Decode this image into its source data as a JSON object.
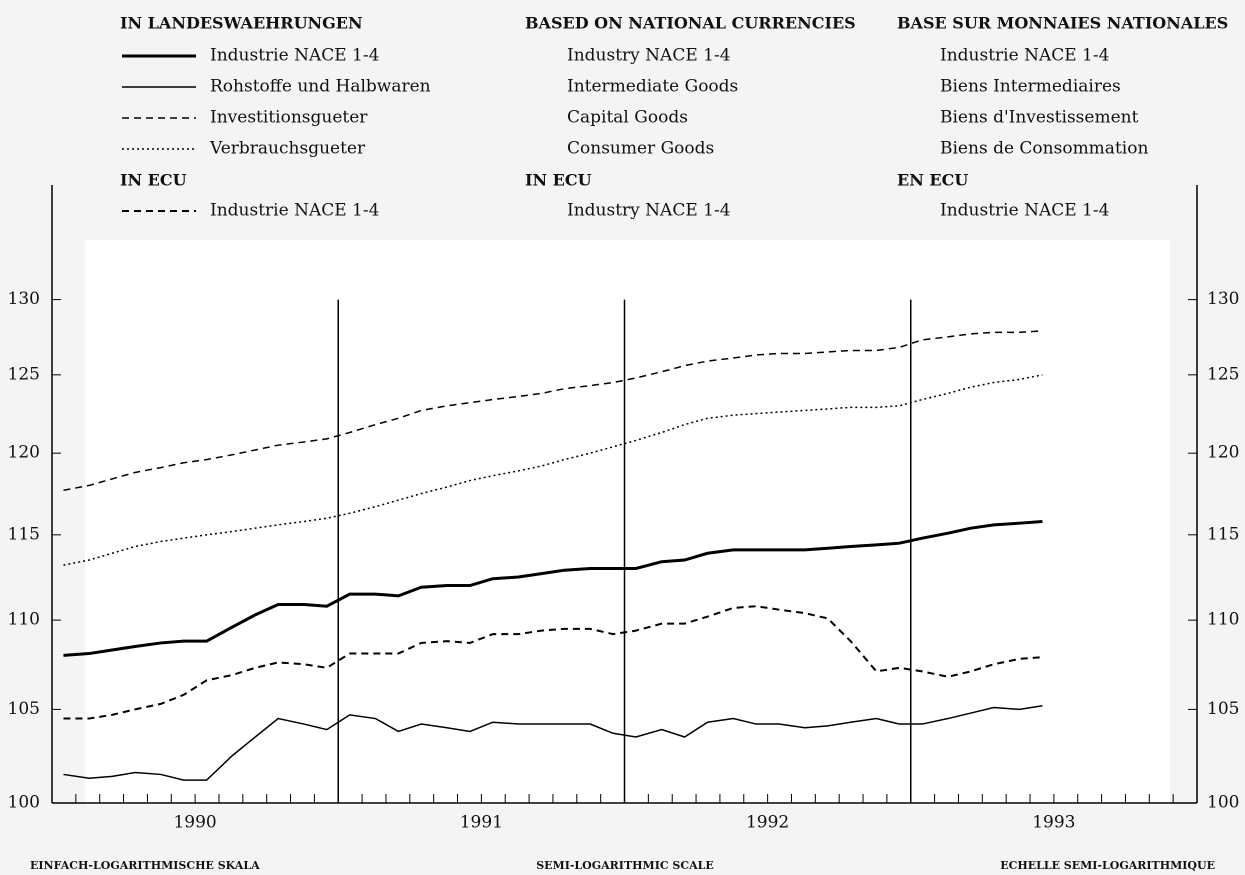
{
  "chart_data": {
    "type": "line",
    "legend_columns": [
      {
        "heading": "IN LANDESWAEHRUNGEN",
        "ecu_heading": "IN ECU"
      },
      {
        "heading": "BASED ON NATIONAL CURRENCIES",
        "ecu_heading": "IN ECU"
      },
      {
        "heading": "BASE SUR MONNAIES NATIONALES",
        "ecu_heading": "EN ECU"
      }
    ],
    "footer": [
      "EINFACH-LOGARITHMISCHE SKALA",
      "SEMI-LOGARITHMIC SCALE",
      "ECHELLE SEMI-LOGARITHMIQUE"
    ],
    "log_scale": true,
    "xlim": [
      1990,
      1994
    ],
    "xticks": [
      {
        "value": 1990.5,
        "label": "1990"
      },
      {
        "value": 1991.5,
        "label": "1991"
      },
      {
        "value": 1992.5,
        "label": "1992"
      },
      {
        "value": 1993.5,
        "label": "1993"
      }
    ],
    "year_lines": [
      1991,
      1992,
      1993
    ],
    "ylim": [
      100,
      138
    ],
    "yticks": [
      100,
      105,
      110,
      115,
      120,
      125,
      130
    ],
    "x": [
      1990.04,
      1990.13,
      1990.21,
      1990.29,
      1990.38,
      1990.46,
      1990.54,
      1990.63,
      1990.71,
      1990.79,
      1990.88,
      1990.96,
      1991.04,
      1991.13,
      1991.21,
      1991.29,
      1991.38,
      1991.46,
      1991.54,
      1991.63,
      1991.71,
      1991.79,
      1991.88,
      1991.96,
      1992.04,
      1992.13,
      1992.21,
      1992.29,
      1992.38,
      1992.46,
      1992.54,
      1992.63,
      1992.71,
      1992.79,
      1992.88,
      1992.96,
      1993.04,
      1993.13,
      1993.21,
      1993.29,
      1993.38,
      1993.46
    ],
    "series": [
      {
        "name": "Industrie NACE 1-4",
        "name_en": "Industry NACE 1-4",
        "name_fr": "Industrie NACE 1-4",
        "color": "#000000",
        "dash": "solid",
        "width": 3,
        "group": "national",
        "values": [
          108.0,
          108.1,
          108.3,
          108.5,
          108.7,
          108.8,
          108.8,
          109.6,
          110.3,
          110.9,
          110.9,
          110.8,
          111.5,
          111.5,
          111.4,
          111.9,
          112.0,
          112.0,
          112.4,
          112.5,
          112.7,
          112.9,
          113.0,
          113.0,
          113.0,
          113.4,
          113.5,
          113.9,
          114.1,
          114.1,
          114.1,
          114.1,
          114.2,
          114.3,
          114.4,
          114.5,
          114.8,
          115.1,
          115.4,
          115.6,
          115.7,
          115.8
        ]
      },
      {
        "name": "Rohstoffe und Halbwaren",
        "name_en": "Intermediate Goods",
        "name_fr": "Biens Intermediaires",
        "color": "#000000",
        "dash": "solid",
        "width": 1.5,
        "group": "national",
        "values": [
          101.5,
          101.3,
          101.4,
          101.6,
          101.5,
          101.2,
          101.2,
          102.5,
          103.5,
          104.5,
          104.2,
          103.9,
          104.7,
          104.5,
          103.8,
          104.2,
          104.0,
          103.8,
          104.3,
          104.2,
          104.2,
          104.2,
          104.2,
          103.7,
          103.5,
          103.9,
          103.5,
          104.3,
          104.5,
          104.2,
          104.2,
          104.0,
          104.1,
          104.3,
          104.5,
          104.2,
          104.2,
          104.5,
          104.8,
          105.1,
          105.0,
          105.2
        ]
      },
      {
        "name": "Investitionsgueter",
        "name_en": "Capital Goods",
        "name_fr": "Biens d'Investissement",
        "color": "#000000",
        "dash": "dashed",
        "width": 1.5,
        "group": "national",
        "values": [
          117.7,
          118.0,
          118.4,
          118.8,
          119.1,
          119.4,
          119.6,
          119.9,
          120.2,
          120.5,
          120.7,
          120.9,
          121.3,
          121.8,
          122.2,
          122.7,
          123.0,
          123.2,
          123.4,
          123.6,
          123.8,
          124.1,
          124.3,
          124.5,
          124.8,
          125.2,
          125.6,
          125.9,
          126.1,
          126.3,
          126.4,
          126.4,
          126.5,
          126.6,
          126.6,
          126.8,
          127.3,
          127.5,
          127.7,
          127.8,
          127.8,
          127.9
        ]
      },
      {
        "name": "Verbrauchsgueter",
        "name_en": "Consumer Goods",
        "name_fr": "Biens de Consommation",
        "color": "#000000",
        "dash": "dotted",
        "width": 1.5,
        "group": "national",
        "values": [
          113.2,
          113.5,
          113.9,
          114.3,
          114.6,
          114.8,
          115.0,
          115.2,
          115.4,
          115.6,
          115.8,
          116.0,
          116.3,
          116.7,
          117.1,
          117.5,
          117.9,
          118.3,
          118.6,
          118.9,
          119.2,
          119.6,
          120.0,
          120.4,
          120.8,
          121.3,
          121.8,
          122.2,
          122.4,
          122.5,
          122.6,
          122.7,
          122.8,
          122.9,
          122.9,
          123.0,
          123.4,
          123.8,
          124.2,
          124.5,
          124.7,
          125.0
        ]
      },
      {
        "name": "Industrie NACE 1-4",
        "name_en": "Industry NACE 1-4",
        "name_fr": "Industrie NACE 1-4",
        "color": "#000000",
        "dash": "dashed",
        "width": 2,
        "group": "ecu",
        "values": [
          104.5,
          104.5,
          104.7,
          105.0,
          105.3,
          105.8,
          106.6,
          106.9,
          107.3,
          107.6,
          107.5,
          107.3,
          108.1,
          108.1,
          108.1,
          108.7,
          108.8,
          108.7,
          109.2,
          109.2,
          109.4,
          109.5,
          109.5,
          109.2,
          109.4,
          109.8,
          109.8,
          110.2,
          110.7,
          110.8,
          110.6,
          110.4,
          110.1,
          108.8,
          107.1,
          107.3,
          107.1,
          106.8,
          107.1,
          107.5,
          107.8,
          107.9
        ]
      }
    ]
  }
}
